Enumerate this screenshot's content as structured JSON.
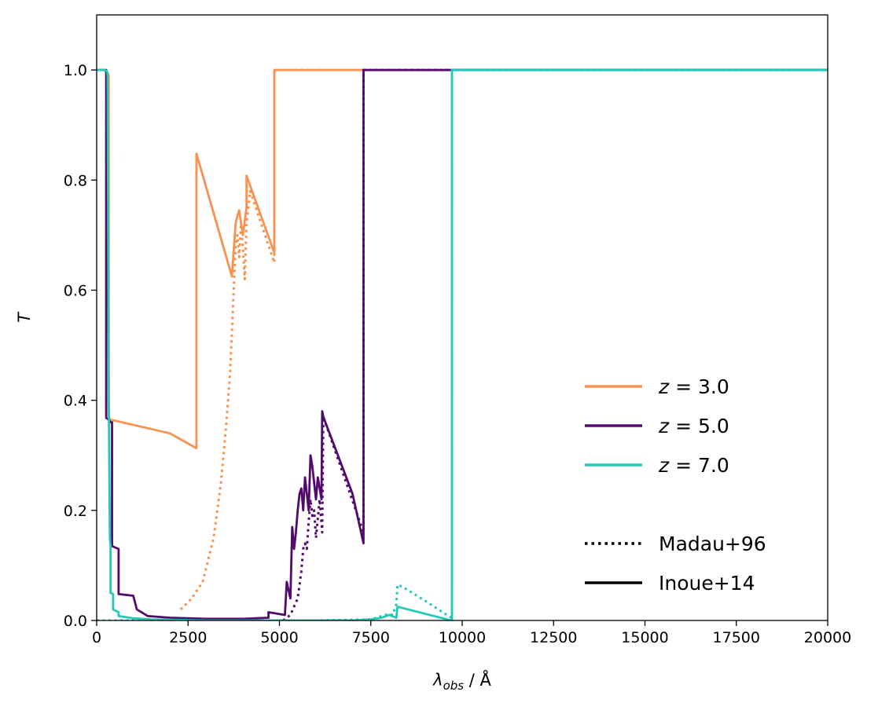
{
  "chart_data": {
    "type": "line",
    "xlabel": "λobs / Å",
    "ylabel": "T",
    "xlim": [
      0,
      20000
    ],
    "ylim": [
      0,
      1.1
    ],
    "xticks": [
      0,
      2500,
      5000,
      7500,
      10000,
      12500,
      15000,
      17500,
      20000
    ],
    "yticks": [
      0.0,
      0.2,
      0.4,
      0.6,
      0.8,
      1.0
    ],
    "xtick_labels": [
      "0",
      "2500",
      "5000",
      "7500",
      "10000",
      "12500",
      "15000",
      "17500",
      "20000"
    ],
    "ytick_labels": [
      "0.0",
      "0.2",
      "0.4",
      "0.6",
      "0.8",
      "1.0"
    ],
    "grid": false,
    "legend_placement": "lower-right",
    "colors": {
      "z3": "#f89250",
      "z5": "#520a6e",
      "z7": "#22c9b8"
    },
    "legend": {
      "series": [
        {
          "label": "z = 3.0",
          "color": "#f89250"
        },
        {
          "label": "z = 5.0",
          "color": "#520a6e"
        },
        {
          "label": "z = 7.0",
          "color": "#22c9b8"
        }
      ],
      "styles": [
        {
          "label": "Madau+96",
          "dash": "dotted"
        },
        {
          "label": "Inoue+14",
          "dash": "solid"
        }
      ]
    },
    "series": [
      {
        "key": "z3_inoue",
        "color": "#f89250",
        "dash": "solid",
        "x": [
          0,
          200,
          300,
          330,
          330,
          360,
          360,
          2000,
          2730,
          2730,
          3700,
          3800,
          3850,
          3900,
          4000,
          4100,
          4100,
          4860,
          4860,
          20000
        ],
        "y": [
          1.0,
          1.0,
          0.995,
          0.99,
          0.37,
          0.367,
          0.365,
          0.34,
          0.313,
          0.848,
          0.625,
          0.72,
          0.735,
          0.745,
          0.7,
          0.75,
          0.808,
          0.668,
          1.0,
          1.0
        ]
      },
      {
        "key": "z3_madau",
        "color": "#f89250",
        "dash": "dotted",
        "x": [
          2300,
          2600,
          2900,
          3200,
          3400,
          3550,
          3650,
          3750,
          3800,
          3850,
          3900,
          3950,
          4000,
          4050,
          4100,
          4200,
          4860,
          4860,
          20000
        ],
        "y": [
          0.02,
          0.04,
          0.07,
          0.15,
          0.25,
          0.36,
          0.45,
          0.6,
          0.68,
          0.7,
          0.66,
          0.72,
          0.68,
          0.62,
          0.72,
          0.78,
          0.65,
          1.0,
          1.0
        ]
      },
      {
        "key": "z5_inoue",
        "color": "#520a6e",
        "dash": "solid",
        "x": [
          0,
          200,
          260,
          260,
          320,
          380,
          420,
          420,
          600,
          600,
          1000,
          1100,
          1100,
          1400,
          1400,
          2000,
          3000,
          4000,
          4700,
          4700,
          5150,
          5200,
          5300,
          5350,
          5400,
          5450,
          5500,
          5550,
          5600,
          5650,
          5700,
          5750,
          5800,
          5850,
          5900,
          6000,
          6050,
          6150,
          6170,
          6200,
          7000,
          7300,
          7300,
          20000
        ],
        "y": [
          1.0,
          1.0,
          1.0,
          0.368,
          0.365,
          0.36,
          0.36,
          0.135,
          0.13,
          0.048,
          0.045,
          0.02,
          0.02,
          0.008,
          0.008,
          0.005,
          0.003,
          0.003,
          0.005,
          0.015,
          0.01,
          0.07,
          0.04,
          0.17,
          0.13,
          0.16,
          0.2,
          0.23,
          0.24,
          0.2,
          0.26,
          0.23,
          0.2,
          0.3,
          0.28,
          0.22,
          0.26,
          0.22,
          0.38,
          0.37,
          0.23,
          0.14,
          1.0,
          1.0
        ]
      },
      {
        "key": "z5_madau",
        "color": "#520a6e",
        "dash": "dotted",
        "x": [
          5100,
          5300,
          5500,
          5600,
          5650,
          5700,
          5750,
          5800,
          5850,
          5900,
          5950,
          6000,
          6100,
          6170,
          6200,
          7300,
          7300,
          20000
        ],
        "y": [
          0.0,
          0.01,
          0.04,
          0.09,
          0.13,
          0.14,
          0.13,
          0.18,
          0.22,
          0.19,
          0.2,
          0.15,
          0.22,
          0.16,
          0.37,
          0.16,
          1.0,
          1.0
        ]
      },
      {
        "key": "z7_inoue",
        "color": "#22c9b8",
        "dash": "solid",
        "x": [
          0,
          200,
          280,
          300,
          330,
          360,
          380,
          380,
          450,
          450,
          600,
          600,
          1000,
          1500,
          3000,
          5000,
          7000,
          7500,
          7800,
          8000,
          8200,
          8230,
          9700,
          9720,
          9720,
          20000
        ],
        "y": [
          1.0,
          1.0,
          0.998,
          0.99,
          0.4,
          0.15,
          0.135,
          0.05,
          0.048,
          0.02,
          0.015,
          0.008,
          0.004,
          0.002,
          0.0,
          0.0,
          0.0,
          0.002,
          0.005,
          0.01,
          0.005,
          0.025,
          0.0,
          0.0,
          1.0,
          1.0
        ]
      },
      {
        "key": "z7_madau",
        "color": "#22c9b8",
        "dash": "dotted",
        "x": [
          0,
          500,
          1000,
          3000,
          6000,
          7500,
          7800,
          8000,
          8100,
          8200,
          8230,
          8400,
          9000,
          9700,
          9720,
          9720,
          20000
        ],
        "y": [
          0.0,
          0.0,
          0.0,
          0.0,
          0.0,
          0.002,
          0.008,
          0.012,
          0.01,
          0.03,
          0.065,
          0.06,
          0.035,
          0.005,
          0.0,
          1.0,
          1.0
        ]
      }
    ]
  }
}
